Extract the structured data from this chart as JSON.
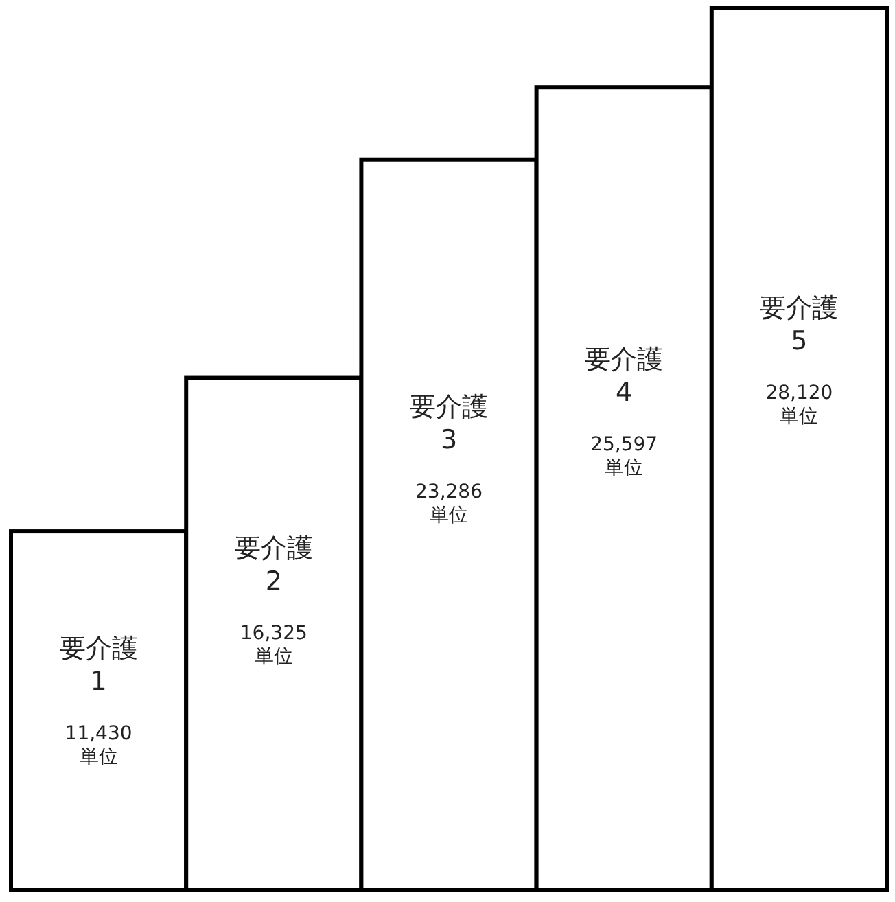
{
  "chart_data": {
    "type": "bar",
    "categories": [
      "要介護 1",
      "要介護 2",
      "要介護 3",
      "要介護 4",
      "要介護 5"
    ],
    "values": [
      11430,
      16325,
      23286,
      25597,
      28120
    ],
    "value_labels": [
      "11,430 単位",
      "16,325 単位",
      "23,286 単位",
      "25,597 単位",
      "28,120 単位"
    ],
    "color": "#ffffff"
  }
}
